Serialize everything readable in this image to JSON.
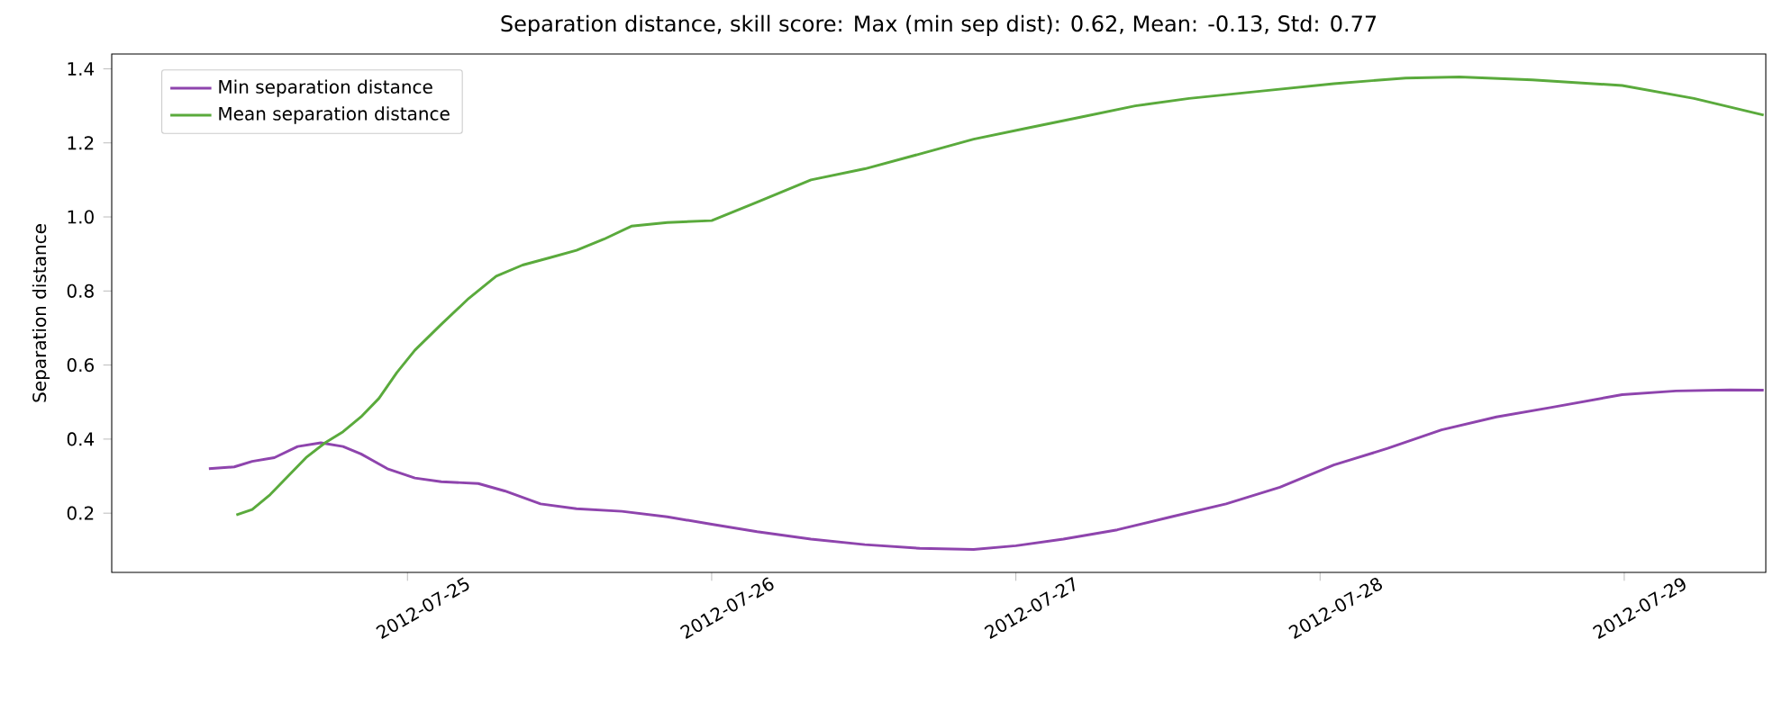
{
  "chart_data": {
    "type": "line",
    "title": "Separation distance, skill score: Max (min sep dist): 0.62, Mean: -0.13, Std: 0.77",
    "ylabel": "Separation distance",
    "xlim": [
      "2012-07-24T00:40",
      "2012-07-29T11:10"
    ],
    "xticks": [
      "2012-07-25",
      "2012-07-26",
      "2012-07-27",
      "2012-07-28",
      "2012-07-29"
    ],
    "ylim": [
      0.04,
      1.44
    ],
    "yticks": [
      0.2,
      0.4,
      0.6,
      0.8,
      {
        "value": 1.0,
        "label": "1.0"
      },
      1.2,
      1.4
    ],
    "legend": "top left",
    "series": [
      {
        "name": "Min separation distance",
        "color": "#8e44ad",
        "x": [
          "2012-07-24T08:20",
          "2012-07-24T10:20",
          "2012-07-24T11:45",
          "2012-07-24T13:30",
          "2012-07-24T15:20",
          "2012-07-24T17:10",
          "2012-07-24T18:55",
          "2012-07-24T20:20",
          "2012-07-24T22:25",
          "2012-07-25T00:35",
          "2012-07-25T02:40",
          "2012-07-25T05:35",
          "2012-07-25T07:40",
          "2012-07-25T10:30",
          "2012-07-25T13:20",
          "2012-07-25T16:55",
          "2012-07-25T20:30",
          "2012-07-26T00:00",
          "2012-07-26T03:35",
          "2012-07-26T07:50",
          "2012-07-26T12:05",
          "2012-07-26T16:25",
          "2012-07-26T20:40",
          "2012-07-27T00:00",
          "2012-07-27T03:45",
          "2012-07-27T08:00",
          "2012-07-27T12:15",
          "2012-07-27T16:35",
          "2012-07-27T20:50",
          "2012-07-28T01:05",
          "2012-07-28T05:20",
          "2012-07-28T09:35",
          "2012-07-28T13:55",
          "2012-07-28T18:10",
          "2012-07-28T23:50",
          "2012-07-29T04:05",
          "2012-07-29T08:20",
          "2012-07-29T11:00"
        ],
        "values": [
          0.32,
          0.325,
          0.34,
          0.35,
          0.38,
          0.39,
          0.38,
          0.36,
          0.32,
          0.295,
          0.285,
          0.28,
          0.26,
          0.225,
          0.212,
          0.205,
          0.19,
          0.17,
          0.15,
          0.13,
          0.115,
          0.105,
          0.102,
          0.112,
          0.13,
          0.155,
          0.19,
          0.225,
          0.27,
          0.33,
          0.375,
          0.425,
          0.46,
          0.485,
          0.52,
          0.53,
          0.533,
          0.532
        ]
      },
      {
        "name": "Mean separation distance",
        "color": "#5aaa3c",
        "x": [
          "2012-07-24T10:30",
          "2012-07-24T11:45",
          "2012-07-24T13:10",
          "2012-07-24T14:35",
          "2012-07-24T16:00",
          "2012-07-24T17:30",
          "2012-07-24T18:55",
          "2012-07-24T20:20",
          "2012-07-24T21:45",
          "2012-07-24T23:10",
          "2012-07-25T00:35",
          "2012-07-25T02:40",
          "2012-07-25T04:50",
          "2012-07-25T07:00",
          "2012-07-25T09:05",
          "2012-07-25T11:15",
          "2012-07-25T13:20",
          "2012-07-25T15:30",
          "2012-07-25T17:40",
          "2012-07-25T20:30",
          "2012-07-26T00:00",
          "2012-07-26T03:35",
          "2012-07-26T07:50",
          "2012-07-26T12:05",
          "2012-07-26T16:25",
          "2012-07-26T20:40",
          "2012-07-27T00:55",
          "2012-07-27T05:10",
          "2012-07-27T09:25",
          "2012-07-27T13:40",
          "2012-07-27T19:25",
          "2012-07-28T01:05",
          "2012-07-28T06:45",
          "2012-07-28T11:00",
          "2012-07-28T16:45",
          "2012-07-28T23:50",
          "2012-07-29T05:30",
          "2012-07-29T11:00"
        ],
        "values": [
          0.195,
          0.21,
          0.25,
          0.3,
          0.35,
          0.39,
          0.42,
          0.46,
          0.51,
          0.58,
          0.64,
          0.71,
          0.78,
          0.84,
          0.87,
          0.89,
          0.91,
          0.94,
          0.975,
          0.985,
          0.99,
          1.04,
          1.1,
          1.13,
          1.17,
          1.21,
          1.24,
          1.27,
          1.3,
          1.32,
          1.34,
          1.36,
          1.375,
          1.378,
          1.37,
          1.355,
          1.32,
          1.275
        ]
      }
    ]
  }
}
